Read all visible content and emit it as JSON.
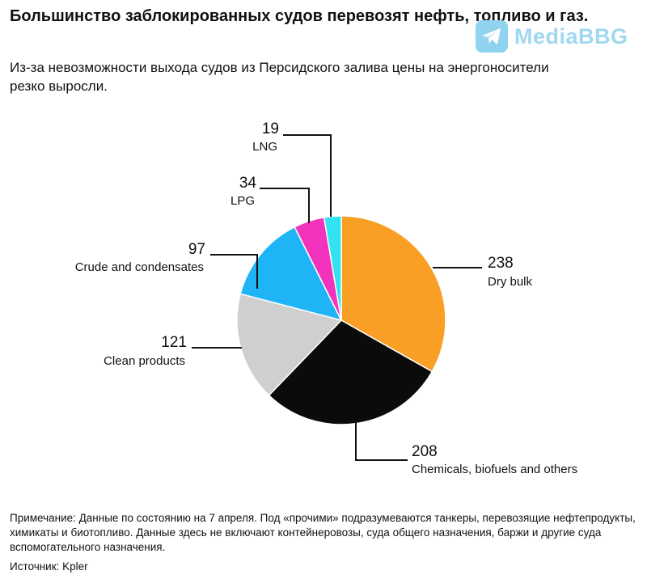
{
  "header": {
    "title": "Большинство заблокированных судов перевозят нефть, топливо и газ.",
    "subtitle": "Из-за невозможности выхода судов из Персидского залива цены на энергоносители резко выросли."
  },
  "watermark": {
    "text": "MediaBBG",
    "icon": "telegram-icon"
  },
  "chart_data": {
    "type": "pie",
    "title": "Большинство заблокированных судов перевозят нефть, топливо и газ.",
    "slices": [
      {
        "label": "Dry bulk",
        "value": 238,
        "display": "238",
        "color": "#f99f26"
      },
      {
        "label": "Chemicals, biofuels and others",
        "value": 208,
        "display": "208",
        "color": "#0b0b0b"
      },
      {
        "label": "Clean products",
        "value": 121,
        "display": "121",
        "color": "#cfcfcf"
      },
      {
        "label": "Crude and condensates",
        "value": 97,
        "display": "97",
        "color": "#1eb4f6"
      },
      {
        "label": "LPG",
        "value": 34,
        "display": "34",
        "color": "#f233bd"
      },
      {
        "label": "LNG",
        "value": 19,
        "display": "19",
        "color": "#31e3ee"
      }
    ]
  },
  "footer": {
    "note": "Примечание: Данные по состоянию на 7 апреля. Под «прочими» подразумеваются танкеры, перевозящие нефтепродукты, химикаты и биотопливо. Данные здесь не включают контейнеровозы, суда общего назначения, баржи и другие суда вспомогательного назначения.",
    "source": "Источник: Kpler"
  }
}
